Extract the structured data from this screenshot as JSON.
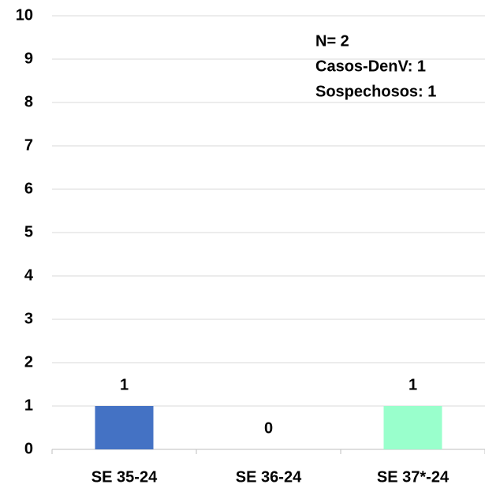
{
  "chart_data": {
    "type": "bar",
    "categories": [
      "SE 35-24",
      "SE 36-24",
      "SE 37*-24"
    ],
    "values": [
      1,
      0,
      1
    ],
    "colors": [
      "#4472c4",
      null,
      "#99ffcc"
    ],
    "ylim": [
      0,
      10
    ],
    "yticks": [
      0,
      1,
      2,
      3,
      4,
      5,
      6,
      7,
      8,
      9,
      10
    ],
    "grid": true,
    "annotations": [
      "N= 2",
      "Casos-DenV: 1",
      "Sospechosos: 1"
    ]
  }
}
